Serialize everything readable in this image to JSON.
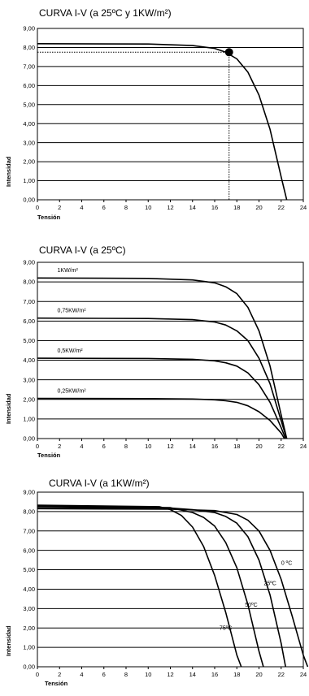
{
  "chart_data": [
    {
      "type": "line",
      "title": "CURVA I-V (a 25ºC y 1KW/m²)",
      "xlabel": "Tensión",
      "ylabel": "Intensidad",
      "xlim": [
        0,
        24
      ],
      "ylim": [
        0,
        9
      ],
      "xticks": [
        "0",
        "2",
        "4",
        "6",
        "8",
        "10",
        "12",
        "14",
        "16",
        "18",
        "20",
        "22",
        "24"
      ],
      "yticks": [
        "0,00",
        "1,00",
        "2,00",
        "3,00",
        "4,00",
        "5,00",
        "6,00",
        "7,00",
        "8,00",
        "9,00"
      ],
      "grid": "horizontal",
      "series": [
        {
          "x": [
            0,
            10,
            14,
            16,
            17,
            18,
            19,
            20,
            21,
            22,
            22.5
          ],
          "y": [
            8.2,
            8.18,
            8.1,
            7.95,
            7.75,
            7.4,
            6.7,
            5.5,
            3.7,
            1.2,
            0
          ]
        }
      ],
      "point": {
        "x": 17.3,
        "y": 7.75
      }
    },
    {
      "type": "line",
      "title": "CURVA I-V (a 25ºC)",
      "xlabel": "Tensión",
      "ylabel": "Intensidad",
      "xlim": [
        0,
        24
      ],
      "ylim": [
        0,
        9
      ],
      "xticks": [
        "0",
        "2",
        "4",
        "6",
        "8",
        "10",
        "12",
        "14",
        "16",
        "18",
        "20",
        "22",
        "24"
      ],
      "yticks": [
        "0,00",
        "1,00",
        "2,00",
        "3,00",
        "4,00",
        "5,00",
        "6,00",
        "7,00",
        "8,00",
        "9,00"
      ],
      "grid": "horizontal",
      "series": [
        {
          "label": "1KW/m²",
          "x": [
            0,
            10,
            14,
            16,
            17,
            18,
            19,
            20,
            21,
            22,
            22.5
          ],
          "y": [
            8.2,
            8.18,
            8.1,
            7.95,
            7.75,
            7.4,
            6.7,
            5.5,
            3.7,
            1.2,
            0
          ]
        },
        {
          "label": "0,75KW/m²",
          "x": [
            0,
            10,
            14,
            16,
            17,
            18,
            19,
            20,
            21,
            22,
            22.5
          ],
          "y": [
            6.15,
            6.13,
            6.07,
            5.95,
            5.8,
            5.5,
            5.0,
            4.1,
            2.8,
            0.9,
            0
          ]
        },
        {
          "label": "0,5KW/m²",
          "x": [
            0,
            10,
            14,
            16,
            17,
            18,
            19,
            20,
            21,
            22,
            22.4
          ],
          "y": [
            4.1,
            4.09,
            4.05,
            3.97,
            3.87,
            3.7,
            3.35,
            2.75,
            1.85,
            0.55,
            0
          ]
        },
        {
          "label": "0,25KW/m²",
          "x": [
            0,
            10,
            14,
            16,
            17,
            18,
            19,
            20,
            21,
            22,
            22.3
          ],
          "y": [
            2.05,
            2.04,
            2.02,
            1.98,
            1.93,
            1.85,
            1.67,
            1.37,
            0.92,
            0.28,
            0
          ]
        }
      ]
    },
    {
      "type": "line",
      "title": "CURVA I-V (a 1KW/m²)",
      "xlabel": "Tensión",
      "ylabel": "Intensidad",
      "xlim": [
        0,
        24
      ],
      "ylim": [
        0,
        9
      ],
      "xticks": [
        "0",
        "2",
        "4",
        "6",
        "8",
        "10",
        "12",
        "14",
        "16",
        "18",
        "20",
        "22",
        "24"
      ],
      "yticks": [
        "0,00",
        "1,00",
        "2,00",
        "3,00",
        "4,00",
        "5,00",
        "6,00",
        "7,00",
        "8,00",
        "9,00"
      ],
      "grid": "horizontal",
      "series": [
        {
          "label": "0 ºC",
          "x": [
            0,
            12,
            16,
            18,
            19,
            20,
            21,
            22,
            23,
            24,
            24.4
          ],
          "y": [
            8.15,
            8.12,
            8.05,
            7.85,
            7.55,
            7.0,
            6.0,
            4.5,
            2.6,
            0.6,
            0
          ]
        },
        {
          "label": "25ºC",
          "x": [
            0,
            12,
            14,
            16,
            17,
            18,
            19,
            20,
            21,
            22,
            22.4
          ],
          "y": [
            8.2,
            8.18,
            8.1,
            7.95,
            7.75,
            7.4,
            6.7,
            5.5,
            3.7,
            1.2,
            0
          ]
        },
        {
          "label": "50ºC",
          "x": [
            0,
            12,
            14,
            15,
            16,
            17,
            18,
            19,
            20,
            20.4
          ],
          "y": [
            8.28,
            8.2,
            7.95,
            7.7,
            7.25,
            6.4,
            5.1,
            3.2,
            0.8,
            0
          ]
        },
        {
          "label": "75ºC",
          "x": [
            0,
            11,
            12,
            13,
            14,
            15,
            16,
            17,
            18,
            18.4
          ],
          "y": [
            8.33,
            8.25,
            8.1,
            7.8,
            7.2,
            6.2,
            4.7,
            2.8,
            0.6,
            0
          ]
        }
      ]
    }
  ]
}
